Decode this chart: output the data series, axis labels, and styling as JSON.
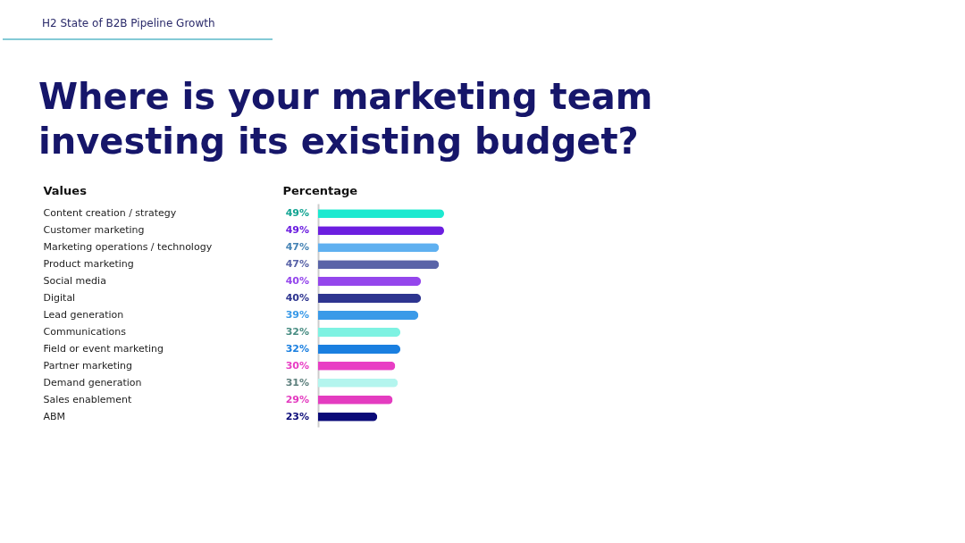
{
  "chart_data": {
    "type": "bar",
    "orientation": "horizontal",
    "title": "Where is your marketing team investing its existing budget?",
    "subtitle": "H2 State of B2B Pipeline Growth",
    "ylabel": "Values",
    "xlabel": "Percentage",
    "categories": [
      "Content creation / strategy",
      "Customer marketing",
      "Marketing operations / technology",
      "Product marketing",
      "Social media",
      "Digital",
      "Lead generation",
      "Communications",
      "Field or event marketing",
      "Partner marketing",
      "Demand generation",
      "Sales enablement",
      "ABM"
    ],
    "values": [
      49,
      49,
      47,
      47,
      40,
      40,
      39,
      32,
      32,
      30,
      31,
      29,
      23
    ],
    "colors": [
      "#1de9d0",
      "#6c1ee0",
      "#5fb0f0",
      "#5a64a8",
      "#9446ec",
      "#2e3590",
      "#3a9ae8",
      "#7ef2e2",
      "#1a7fe0",
      "#e83ec4",
      "#b4f5ee",
      "#e43cc0",
      "#0a0a78"
    ],
    "value_labels": [
      "49%",
      "49%",
      "47%",
      "47%",
      "40%",
      "40%",
      "39%",
      "32%",
      "32%",
      "30%",
      "31%",
      "29%",
      "23%"
    ],
    "tick_labels": "y",
    "grid": false
  }
}
